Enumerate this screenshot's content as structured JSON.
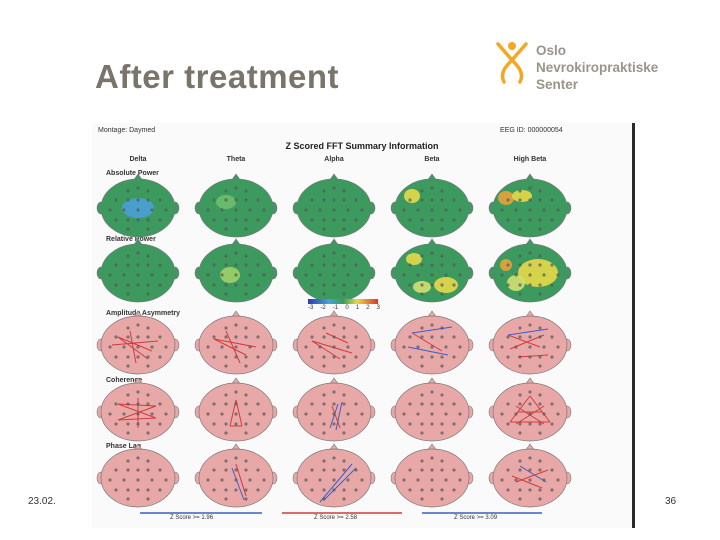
{
  "slide": {
    "title": "After treatment",
    "date": "23.02.",
    "page_number": "36"
  },
  "logo": {
    "line1": "Oslo",
    "line2": "Nevrokiropraktiske Senter"
  },
  "report": {
    "montage_label": "Montage: Daymed",
    "eeg_id_label": "EEG ID: 000000054",
    "title": "Z Scored FFT Summary Information",
    "columns": [
      "Delta",
      "Theta",
      "Alpha",
      "Beta",
      "High Beta"
    ],
    "rows": [
      "Absolute Power",
      "Relative Power",
      "Amplitude Asymmetry",
      "Coherence",
      "Phase Lag"
    ],
    "colorbar_ticks": [
      "-3",
      "-2",
      "-1",
      "0",
      "1",
      "2",
      "3"
    ],
    "legend": [
      "Z Score >= 1.96",
      "Z Score >= 2.58",
      "Z Score >= 3.09"
    ]
  },
  "colors": {
    "title": "#7a756b",
    "logo": "#9a958b",
    "logo_figure": "#f5a623",
    "map_green": "#3c9a5f",
    "map_pink": "#e9a8a8",
    "line_red": "#d23a3a",
    "line_blue": "#3a5ec8"
  }
}
